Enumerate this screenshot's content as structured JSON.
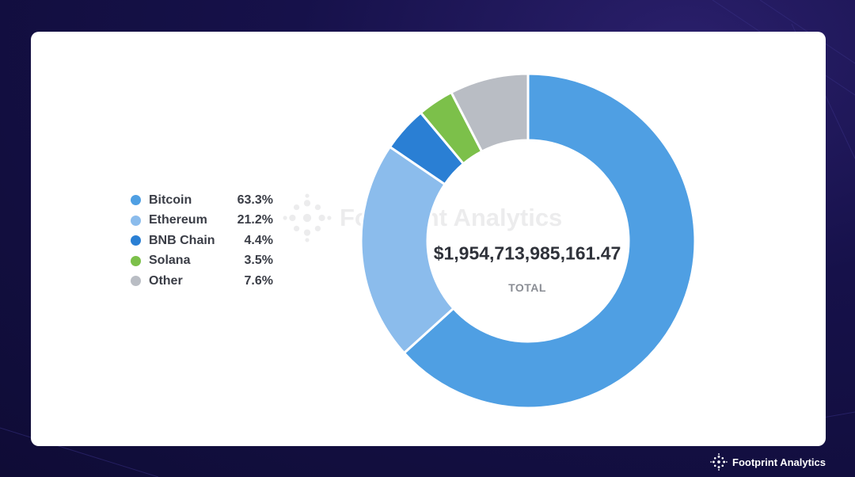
{
  "chart_data": {
    "type": "pie",
    "variant": "donut",
    "title": "",
    "categories": [
      "Bitcoin",
      "Ethereum",
      "BNB Chain",
      "Solana",
      "Other"
    ],
    "values": [
      63.3,
      21.2,
      4.4,
      3.5,
      7.6
    ],
    "value_labels": [
      "63.3%",
      "21.2%",
      "4.4%",
      "3.5%",
      "7.6%"
    ],
    "colors": [
      "#4f9fe3",
      "#8bbcec",
      "#2a7fd4",
      "#7cc04a",
      "#b9bdc4"
    ],
    "legend_placement": "left",
    "center_total": "$1,954,713,985,161.47",
    "center_label": "TOTAL"
  },
  "watermark": {
    "text": "Footprint Analytics",
    "icon": "footprint-logo-icon"
  },
  "brand": {
    "text": "Footprint Analytics",
    "icon": "footprint-logo-icon"
  }
}
